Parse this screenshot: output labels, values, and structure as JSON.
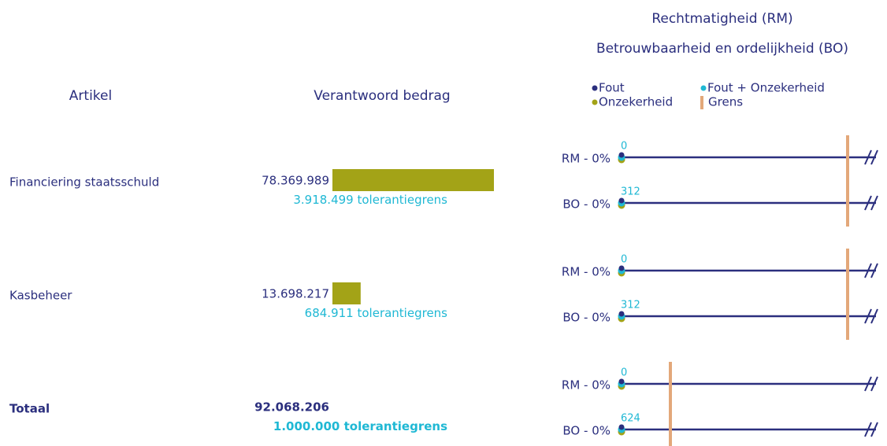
{
  "header": {
    "title_rm": "Rechtmatigheid (RM)",
    "title_bo": "Betrouwbaarheid en ordelijkheid (BO)"
  },
  "columns": {
    "article": "Artikel",
    "amount": "Verantwoord bedrag"
  },
  "legend": {
    "error": "Fout",
    "error_uncertainty": "Fout + Onzekerheid",
    "uncertainty": "Onzekerheid",
    "limit": "Grens"
  },
  "tolerance_suffix": "tolerantiegrens",
  "rows": [
    {
      "name": "Financiering staatsschuld",
      "total": false,
      "amount": {
        "value": 78369989,
        "label": "78.369.989"
      },
      "tolerance": {
        "value": 3918499,
        "label": "3.918.499"
      },
      "lines": [
        {
          "label": "RM - 0%",
          "value": 0
        },
        {
          "label": "BO - 0%",
          "value": 312
        }
      ]
    },
    {
      "name": "Kasbeheer",
      "total": false,
      "amount": {
        "value": 13698217,
        "label": "13.698.217"
      },
      "tolerance": {
        "value": 684911,
        "label": "684.911"
      },
      "lines": [
        {
          "label": "RM - 0%",
          "value": 0
        },
        {
          "label": "BO - 0%",
          "value": 312
        }
      ]
    },
    {
      "name": "Totaal",
      "total": true,
      "amount": {
        "value": 92068206,
        "label": "92.068.206"
      },
      "tolerance": {
        "value": 1000000,
        "label": "1.000.000"
      },
      "lines": [
        {
          "label": "RM - 0%",
          "value": 0
        },
        {
          "label": "BO - 0%",
          "value": 624
        }
      ]
    }
  ]
}
